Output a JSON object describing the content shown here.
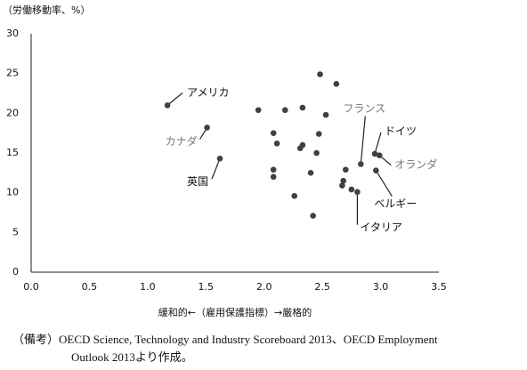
{
  "chart_data": {
    "type": "scatter",
    "y_label": "（労働移動率、%）",
    "x_label": "緩和的←（雇用保護指標）→厳格的",
    "note": [
      "（備考）OECD Science, Technology and Industry Scoreboard 2013、OECD Employment",
      "Outlook 2013より作成。"
    ],
    "color": "#404040",
    "x": [
      1.17,
      1.51,
      1.62,
      2.83,
      2.95,
      2.99,
      2.96,
      2.8,
      1.95,
      2.18,
      2.33,
      2.48,
      2.62,
      2.53,
      2.08,
      2.11,
      2.47,
      2.31,
      2.33,
      2.45,
      2.08,
      2.08,
      2.4,
      2.26,
      2.42,
      2.7,
      2.68,
      2.67,
      2.75
    ],
    "values": [
      21.0,
      18.2,
      14.3,
      13.6,
      14.9,
      14.7,
      12.8,
      10.1,
      20.4,
      20.4,
      20.7,
      24.9,
      23.7,
      19.8,
      17.5,
      16.2,
      17.4,
      15.6,
      16.0,
      15.0,
      12.9,
      12.0,
      12.5,
      9.6,
      7.1,
      12.9,
      11.5,
      10.9,
      10.4
    ],
    "point_labels": [
      "アメリカ",
      "カナダ",
      "英国",
      "フランス",
      "ドイツ",
      "オランダ",
      "ベルギー",
      "イタリア",
      null,
      null,
      null,
      null,
      null,
      null,
      null,
      null,
      null,
      null,
      null,
      null,
      null,
      null,
      null,
      null,
      null,
      null,
      null,
      null,
      null
    ],
    "xlim": [
      0,
      3.5
    ],
    "xticks": [
      {
        "value": 0,
        "label": "0.0"
      },
      {
        "value": 0.5,
        "label": "0.5"
      },
      {
        "value": 1,
        "label": "1.0"
      },
      {
        "value": 1.5,
        "label": "1.5"
      },
      {
        "value": 2,
        "label": "2.0"
      },
      {
        "value": 2.5,
        "label": "2.5"
      },
      {
        "value": 3,
        "label": "3.0"
      },
      {
        "value": 3.5,
        "label": "3.5"
      }
    ],
    "ylim": [
      0,
      30
    ],
    "yticks": [
      0,
      5,
      10,
      15,
      20,
      25,
      30
    ]
  }
}
